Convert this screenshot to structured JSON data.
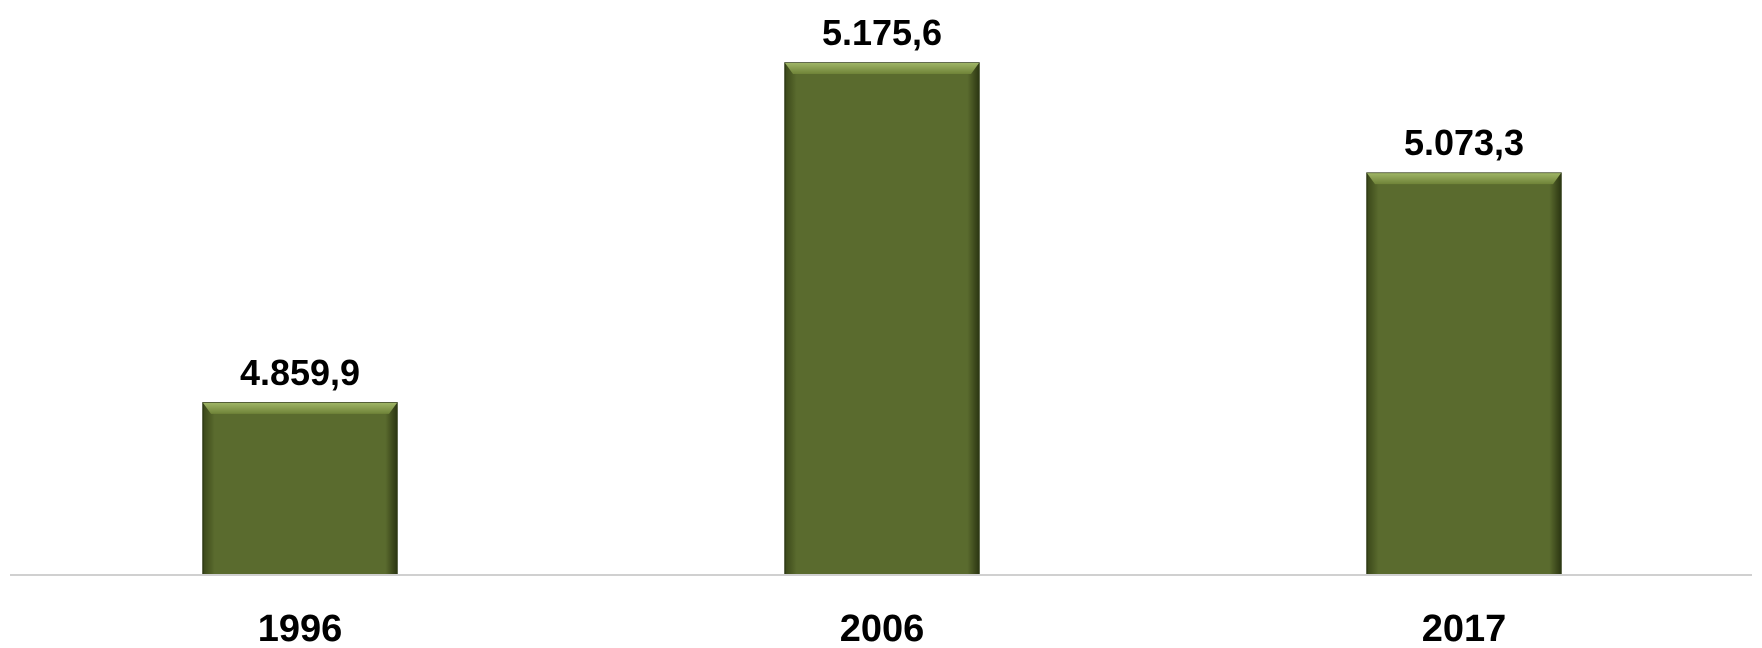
{
  "chart_data": {
    "type": "bar",
    "categories": [
      "1996",
      "2006",
      "2017"
    ],
    "values": [
      4859.9,
      5175.6,
      5073.3
    ],
    "value_labels": [
      "4.859,9",
      "5.175,6",
      "5.073,3"
    ],
    "title": "",
    "xlabel": "",
    "ylabel": "",
    "ylim": [
      4700,
      5175.6
    ],
    "grid": false,
    "legend": "none",
    "colors": {
      "bar": "#5a6b2e",
      "bar_top": "#8ba055",
      "bar_edge": "#2f3a15",
      "axis": "#d0d0d0"
    }
  }
}
